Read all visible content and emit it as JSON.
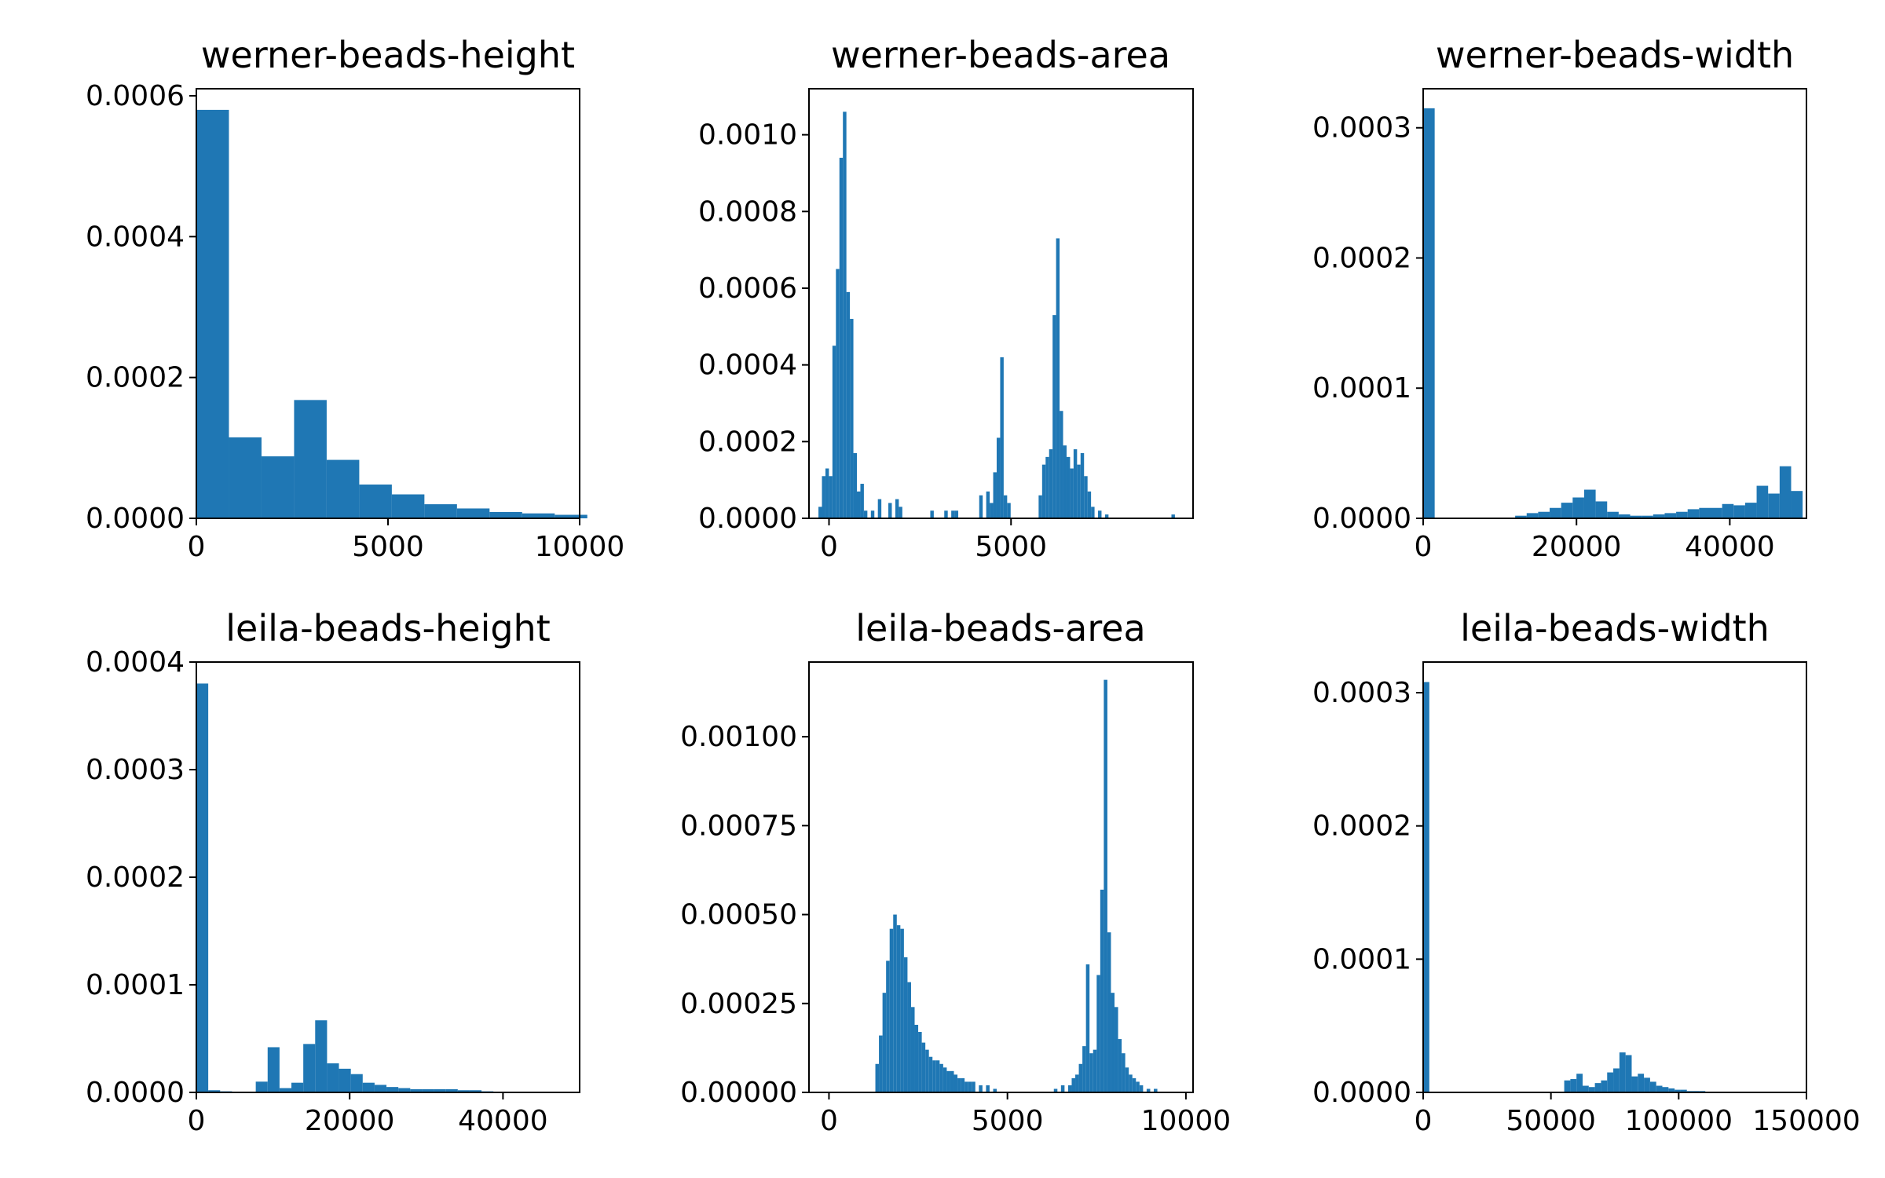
{
  "figure": {
    "background": "#ffffff",
    "bar_color": "#1f77b4"
  },
  "chart_data": [
    {
      "type": "bar",
      "title": "werner-beads-height",
      "xlim": [
        0,
        10000
      ],
      "ylim": [
        0,
        0.00061
      ],
      "xticks": [
        0,
        5000,
        10000
      ],
      "xtick_labels": [
        "0",
        "5000",
        "10000"
      ],
      "yticks": [
        0,
        0.0002,
        0.0004,
        0.0006
      ],
      "ytick_labels": [
        "0.0000",
        "0.0002",
        "0.0004",
        "0.0006"
      ],
      "bin_width": 850,
      "bins": [
        0,
        850,
        1700,
        2550,
        3400,
        4250,
        5100,
        5950,
        6800,
        7650,
        8500,
        9350
      ],
      "values": [
        0.00058,
        0.000115,
        8.8e-05,
        0.000168,
        8.3e-05,
        4.8e-05,
        3.4e-05,
        2e-05,
        1.4e-05,
        9e-06,
        7e-06,
        5e-06
      ]
    },
    {
      "type": "bar",
      "title": "werner-beads-area",
      "xlim": [
        -550,
        10000
      ],
      "ylim": [
        0,
        0.00112
      ],
      "xticks": [
        0,
        5000
      ],
      "xtick_labels": [
        "0",
        "5000"
      ],
      "yticks": [
        0,
        0.0002,
        0.0004,
        0.0006,
        0.0008,
        0.001
      ],
      "ytick_labels": [
        "0.0000",
        "0.0002",
        "0.0004",
        "0.0006",
        "0.0008",
        "0.0010"
      ],
      "bin_width": 96,
      "bins": [
        -290,
        -194,
        -98,
        -2,
        94,
        190,
        286,
        382,
        478,
        574,
        670,
        766,
        862,
        958,
        1150,
        1342,
        1630,
        1822,
        1918,
        2782,
        3166,
        3358,
        3454,
        4126,
        4318,
        4414,
        4510,
        4606,
        4702,
        4798,
        4894,
        5758,
        5854,
        5950,
        6046,
        6142,
        6238,
        6334,
        6430,
        6526,
        6622,
        6718,
        6814,
        6910,
        7006,
        7102,
        7198,
        7390,
        7582,
        9406
      ],
      "values": [
        3e-05,
        0.00011,
        0.00013,
        0.00011,
        0.00045,
        0.00065,
        0.00094,
        0.00106,
        0.00059,
        0.00052,
        0.00017,
        7e-05,
        9e-05,
        2e-05,
        2e-05,
        5e-05,
        4e-05,
        5e-05,
        3e-05,
        2e-05,
        2e-05,
        2e-05,
        2e-05,
        6e-05,
        7e-05,
        4e-05,
        0.00012,
        0.00021,
        0.00042,
        6e-05,
        4e-05,
        6e-05,
        0.00014,
        0.00016,
        0.00018,
        0.00053,
        0.00073,
        0.00028,
        0.00019,
        0.00016,
        0.00013,
        0.00018,
        0.00014,
        0.00017,
        0.00011,
        7e-05,
        3e-05,
        2e-05,
        1e-05,
        1e-05
      ]
    },
    {
      "type": "bar",
      "title": "werner-beads-width",
      "xlim": [
        0,
        50000
      ],
      "ylim": [
        0,
        0.00033
      ],
      "xticks": [
        0,
        20000,
        40000
      ],
      "xtick_labels": [
        "0",
        "20000",
        "40000"
      ],
      "yticks": [
        0,
        0.0001,
        0.0002,
        0.0003
      ],
      "ytick_labels": [
        "0.0000",
        "0.0001",
        "0.0002",
        "0.0003"
      ],
      "bin_width": 1500,
      "bins": [
        0,
        12000,
        13500,
        15000,
        16500,
        18000,
        19500,
        21000,
        22500,
        24000,
        25500,
        27000,
        28500,
        30000,
        31500,
        33000,
        34500,
        36000,
        37500,
        39000,
        40500,
        42000,
        43500,
        45000,
        46500,
        48000
      ],
      "values": [
        0.000315,
        2e-06,
        4e-06,
        5e-06,
        8e-06,
        1.2e-05,
        1.6e-05,
        2.2e-05,
        1.3e-05,
        5e-06,
        3e-06,
        2e-06,
        2e-06,
        3e-06,
        4e-06,
        5e-06,
        7e-06,
        8e-06,
        8e-06,
        1.1e-05,
        1e-05,
        1.2e-05,
        2.5e-05,
        1.9e-05,
        4e-05,
        2.1e-05
      ]
    },
    {
      "type": "bar",
      "title": "leila-beads-height",
      "xlim": [
        0,
        50000
      ],
      "ylim": [
        0,
        0.0004
      ],
      "xticks": [
        0,
        20000,
        40000
      ],
      "xtick_labels": [
        "0",
        "20000",
        "40000"
      ],
      "yticks": [
        0,
        0.0001,
        0.0002,
        0.0003,
        0.0004
      ],
      "ytick_labels": [
        "0.0000",
        "0.0001",
        "0.0002",
        "0.0003",
        "0.0004"
      ],
      "bin_width": 1550,
      "bins": [
        0,
        1550,
        3100,
        7750,
        9300,
        10850,
        12400,
        13950,
        15500,
        17050,
        18600,
        20150,
        21700,
        23250,
        24800,
        26350,
        27900,
        29450,
        31000,
        32550,
        34100,
        35650,
        37200
      ],
      "values": [
        0.00038,
        2e-06,
        1e-06,
        1e-05,
        4.2e-05,
        4e-06,
        9e-06,
        4.5e-05,
        6.7e-05,
        2.7e-05,
        2.2e-05,
        1.7e-05,
        9e-06,
        7e-06,
        5e-06,
        4e-06,
        3e-06,
        3e-06,
        3e-06,
        3e-06,
        2e-06,
        2e-06,
        1e-06
      ]
    },
    {
      "type": "bar",
      "title": "leila-beads-area",
      "xlim": [
        -560,
        10200
      ],
      "ylim": [
        0,
        0.00121
      ],
      "xticks": [
        0,
        5000,
        10000
      ],
      "xtick_labels": [
        "0",
        "5000",
        "10000"
      ],
      "yticks": [
        0,
        0.00025,
        0.0005,
        0.00075,
        0.001
      ],
      "ytick_labels": [
        "0.00000",
        "0.00025",
        "0.00050",
        "0.00075",
        "0.00100"
      ],
      "bin_width": 100,
      "bins": [
        1300,
        1400,
        1500,
        1600,
        1700,
        1800,
        1900,
        2000,
        2100,
        2200,
        2300,
        2400,
        2500,
        2600,
        2700,
        2800,
        2900,
        3000,
        3100,
        3200,
        3300,
        3400,
        3500,
        3600,
        3700,
        3800,
        3900,
        4000,
        4200,
        4400,
        4600,
        6300,
        6500,
        6700,
        6800,
        6900,
        7000,
        7100,
        7200,
        7300,
        7400,
        7500,
        7600,
        7700,
        7800,
        7900,
        8000,
        8100,
        8200,
        8300,
        8400,
        8500,
        8600,
        8700,
        8900,
        9100
      ],
      "values": [
        8e-05,
        0.00016,
        0.00028,
        0.00037,
        0.00046,
        0.0005,
        0.00047,
        0.00046,
        0.00038,
        0.00031,
        0.00024,
        0.00019,
        0.00017,
        0.00014,
        0.00012,
        0.0001,
        9e-05,
        9e-05,
        8e-05,
        7e-05,
        6e-05,
        6e-05,
        5e-05,
        4e-05,
        4e-05,
        3e-05,
        3e-05,
        3e-05,
        2e-05,
        2e-05,
        1e-05,
        1e-05,
        2e-05,
        2e-05,
        4e-05,
        5e-05,
        8e-05,
        0.00013,
        0.00036,
        0.00011,
        0.00012,
        0.00033,
        0.00057,
        0.00116,
        0.00045,
        0.00028,
        0.00024,
        0.00015,
        0.00011,
        7e-05,
        5e-05,
        4e-05,
        3e-05,
        2e-05,
        1e-05,
        1e-05
      ]
    },
    {
      "type": "bar",
      "title": "leila-beads-width",
      "xlim": [
        0,
        150000
      ],
      "ylim": [
        0,
        0.000323
      ],
      "xticks": [
        0,
        50000,
        100000,
        150000
      ],
      "xtick_labels": [
        "0",
        "50000",
        "100000",
        "150000"
      ],
      "yticks": [
        0,
        0.0001,
        0.0002,
        0.0003
      ],
      "ytick_labels": [
        "0.0000",
        "0.0001",
        "0.0002",
        "0.0003"
      ],
      "bin_width": 2400,
      "bins": [
        0,
        55200,
        57600,
        60000,
        62400,
        64800,
        67200,
        69600,
        72000,
        74400,
        76800,
        79200,
        81600,
        84000,
        86400,
        88800,
        91200,
        93600,
        96000,
        98400,
        100800,
        103200,
        105600,
        108000
      ],
      "values": [
        0.000308,
        9e-06,
        1e-05,
        1.4e-05,
        5e-06,
        4e-06,
        7e-06,
        9e-06,
        1.5e-05,
        1.8e-05,
        3e-05,
        2.8e-05,
        1.2e-05,
        1.4e-05,
        1.1e-05,
        8e-06,
        5e-06,
        4e-06,
        3e-06,
        2e-06,
        2e-06,
        1e-06,
        1e-06,
        1e-06
      ]
    }
  ]
}
